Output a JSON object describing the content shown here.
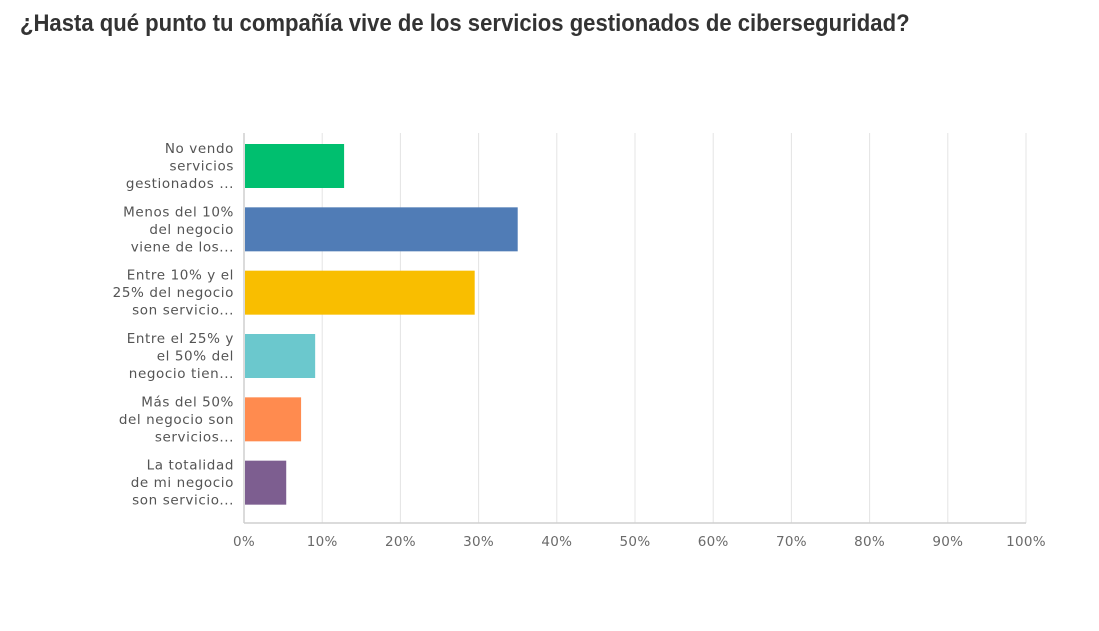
{
  "chart_data": {
    "type": "bar",
    "orientation": "horizontal",
    "title": "¿Hasta qué punto tu compañía vive de los servicios gestionados de ciberseguridad?",
    "categories": [
      [
        "No vendo",
        "servicios",
        "gestionados ..."
      ],
      [
        "Menos del 10%",
        "del negocio",
        "viene de los..."
      ],
      [
        "Entre 10% y el",
        "25% del negocio",
        "son servicio..."
      ],
      [
        "Entre el 25% y",
        "el 50% del",
        "negocio tien..."
      ],
      [
        "Más del 50%",
        "del negocio son",
        "servicios..."
      ],
      [
        "La totalidad",
        "de mi negocio",
        "son servicio..."
      ]
    ],
    "values": [
      12.8,
      35.0,
      29.5,
      9.1,
      7.3,
      5.4
    ],
    "colors": [
      "#00bf6f",
      "#507cb6",
      "#f9be00",
      "#6bc8cd",
      "#ff8b4f",
      "#7d5e90"
    ],
    "xlim": [
      0,
      100
    ],
    "xticks": [
      "0%",
      "10%",
      "20%",
      "30%",
      "40%",
      "50%",
      "60%",
      "70%",
      "80%",
      "90%",
      "100%"
    ],
    "xlabel": "",
    "ylabel": "",
    "grid": true,
    "legend": "none"
  }
}
